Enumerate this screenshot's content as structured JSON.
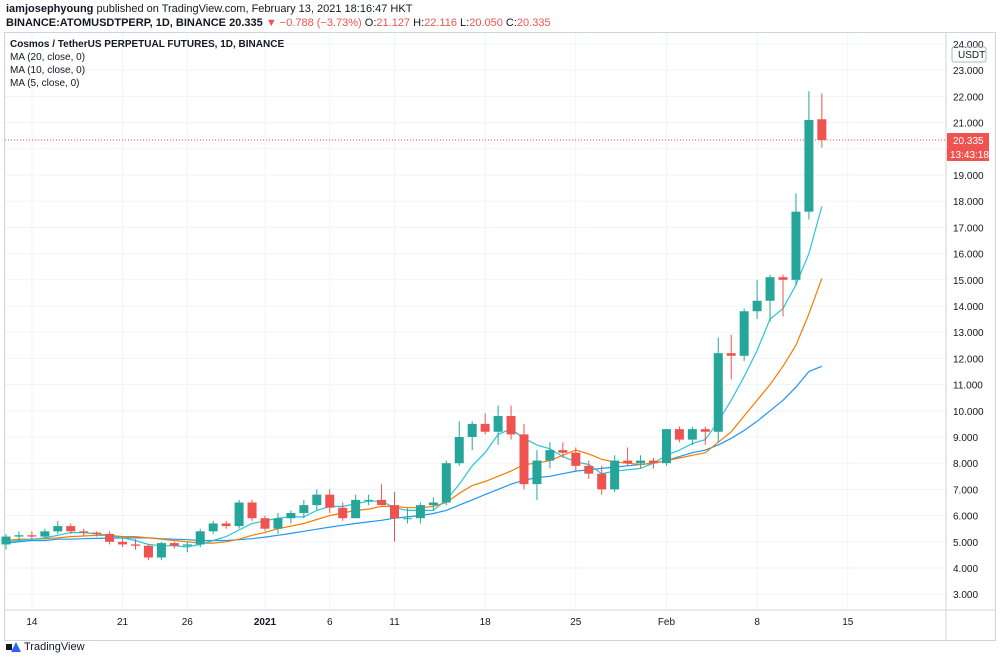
{
  "header": {
    "publisher": "iamjosephyoung",
    "published_text": "published on TradingView.com, February 13, 2021 18:16:47 HKT",
    "symbol": "BINANCE:ATOMUSDTPERP, 1D, BINANCE",
    "price": "20.335",
    "change_text": "−0.788 (−3.73%)",
    "open_label": "O:",
    "open": "21.127",
    "high_label": "H:",
    "high": "22.116",
    "low_label": "L:",
    "low": "20.050",
    "close_label": "C:",
    "close": "20.335"
  },
  "legend": {
    "title": "Cosmos / TetherUS PERPETUAL FUTURES, 1D, BINANCE",
    "ma1": "MA (20, close, 0)",
    "ma2": "MA (10, close, 0)",
    "ma3": "MA (5, close, 0)"
  },
  "axis": {
    "currency": "USDT",
    "price_tag": "20.335",
    "countdown": "13:43:18"
  },
  "footer": {
    "brand": "TradingView"
  },
  "colors": {
    "up": "#26a69a",
    "down": "#ef5350",
    "ma20": "#2196f3",
    "ma10": "#f57c00",
    "ma5": "#26c6da"
  },
  "chart_data": {
    "type": "candlestick",
    "title": "Cosmos / TetherUS PERPETUAL FUTURES, 1D, BINANCE",
    "ylim": [
      2.5,
      24.0
    ],
    "y_ticks": [
      3.0,
      4.0,
      5.0,
      6.0,
      7.0,
      8.0,
      9.0,
      10.0,
      11.0,
      12.0,
      13.0,
      14.0,
      15.0,
      16.0,
      17.0,
      18.0,
      19.0,
      20.0,
      21.0,
      22.0,
      23.0,
      24.0
    ],
    "x_ticks": [
      {
        "index": 2,
        "label": "14"
      },
      {
        "index": 9,
        "label": "21"
      },
      {
        "index": 14,
        "label": "26"
      },
      {
        "index": 20,
        "label": "2021"
      },
      {
        "index": 25,
        "label": "6"
      },
      {
        "index": 30,
        "label": "11"
      },
      {
        "index": 37,
        "label": "18"
      },
      {
        "index": 44,
        "label": "25"
      },
      {
        "index": 51,
        "label": "Feb"
      },
      {
        "index": 58,
        "label": "8"
      },
      {
        "index": 65,
        "label": "15"
      }
    ],
    "candles": [
      {
        "o": 4.9,
        "h": 5.3,
        "l": 4.7,
        "c": 5.2
      },
      {
        "o": 5.2,
        "h": 5.4,
        "l": 5.0,
        "c": 5.25
      },
      {
        "o": 5.25,
        "h": 5.4,
        "l": 5.1,
        "c": 5.2
      },
      {
        "o": 5.2,
        "h": 5.5,
        "l": 5.1,
        "c": 5.4
      },
      {
        "o": 5.4,
        "h": 5.8,
        "l": 5.3,
        "c": 5.6
      },
      {
        "o": 5.6,
        "h": 5.7,
        "l": 5.3,
        "c": 5.4
      },
      {
        "o": 5.4,
        "h": 5.5,
        "l": 5.2,
        "c": 5.35
      },
      {
        "o": 5.35,
        "h": 5.4,
        "l": 5.2,
        "c": 5.3
      },
      {
        "o": 5.3,
        "h": 5.4,
        "l": 4.9,
        "c": 5.0
      },
      {
        "o": 5.0,
        "h": 5.2,
        "l": 4.8,
        "c": 4.9
      },
      {
        "o": 4.9,
        "h": 5.1,
        "l": 4.7,
        "c": 4.85
      },
      {
        "o": 4.85,
        "h": 4.9,
        "l": 4.3,
        "c": 4.4
      },
      {
        "o": 4.4,
        "h": 5.0,
        "l": 4.3,
        "c": 4.95
      },
      {
        "o": 4.95,
        "h": 5.0,
        "l": 4.75,
        "c": 4.85
      },
      {
        "o": 4.85,
        "h": 5.0,
        "l": 4.6,
        "c": 4.9
      },
      {
        "o": 4.9,
        "h": 5.5,
        "l": 4.8,
        "c": 5.4
      },
      {
        "o": 5.4,
        "h": 5.8,
        "l": 5.3,
        "c": 5.7
      },
      {
        "o": 5.7,
        "h": 5.8,
        "l": 5.5,
        "c": 5.6
      },
      {
        "o": 5.6,
        "h": 6.6,
        "l": 5.5,
        "c": 6.5
      },
      {
        "o": 6.5,
        "h": 6.6,
        "l": 5.8,
        "c": 5.9
      },
      {
        "o": 5.9,
        "h": 6.0,
        "l": 5.4,
        "c": 5.5
      },
      {
        "o": 5.5,
        "h": 6.1,
        "l": 5.3,
        "c": 5.9
      },
      {
        "o": 5.9,
        "h": 6.2,
        "l": 5.7,
        "c": 6.1
      },
      {
        "o": 6.1,
        "h": 6.6,
        "l": 5.9,
        "c": 6.4
      },
      {
        "o": 6.4,
        "h": 7.0,
        "l": 6.2,
        "c": 6.8
      },
      {
        "o": 6.8,
        "h": 7.0,
        "l": 6.1,
        "c": 6.3
      },
      {
        "o": 6.3,
        "h": 6.5,
        "l": 5.8,
        "c": 5.9
      },
      {
        "o": 5.9,
        "h": 6.8,
        "l": 5.9,
        "c": 6.6
      },
      {
        "o": 6.6,
        "h": 6.8,
        "l": 6.4,
        "c": 6.6
      },
      {
        "o": 6.6,
        "h": 7.2,
        "l": 6.4,
        "c": 6.4
      },
      {
        "o": 6.4,
        "h": 6.9,
        "l": 5.0,
        "c": 5.9
      },
      {
        "o": 5.9,
        "h": 6.3,
        "l": 5.7,
        "c": 5.9
      },
      {
        "o": 5.9,
        "h": 6.5,
        "l": 5.7,
        "c": 6.4
      },
      {
        "o": 6.4,
        "h": 6.7,
        "l": 6.2,
        "c": 6.5
      },
      {
        "o": 6.5,
        "h": 8.1,
        "l": 6.4,
        "c": 8.0
      },
      {
        "o": 8.0,
        "h": 9.6,
        "l": 7.9,
        "c": 9.0
      },
      {
        "o": 9.0,
        "h": 9.6,
        "l": 8.5,
        "c": 9.5
      },
      {
        "o": 9.5,
        "h": 9.9,
        "l": 9.1,
        "c": 9.2
      },
      {
        "o": 9.2,
        "h": 10.2,
        "l": 8.7,
        "c": 9.8
      },
      {
        "o": 9.8,
        "h": 10.2,
        "l": 8.9,
        "c": 9.1
      },
      {
        "o": 9.1,
        "h": 9.5,
        "l": 7.0,
        "c": 7.2
      },
      {
        "o": 7.2,
        "h": 8.5,
        "l": 6.6,
        "c": 8.1
      },
      {
        "o": 8.1,
        "h": 8.8,
        "l": 7.8,
        "c": 8.5
      },
      {
        "o": 8.5,
        "h": 8.8,
        "l": 8.2,
        "c": 8.4
      },
      {
        "o": 8.4,
        "h": 8.6,
        "l": 7.7,
        "c": 7.9
      },
      {
        "o": 7.9,
        "h": 8.1,
        "l": 7.4,
        "c": 7.6
      },
      {
        "o": 7.6,
        "h": 7.9,
        "l": 6.8,
        "c": 7.0
      },
      {
        "o": 7.0,
        "h": 8.3,
        "l": 6.9,
        "c": 8.1
      },
      {
        "o": 8.1,
        "h": 8.6,
        "l": 7.9,
        "c": 8.0
      },
      {
        "o": 8.0,
        "h": 8.3,
        "l": 7.8,
        "c": 8.1
      },
      {
        "o": 8.1,
        "h": 8.2,
        "l": 7.8,
        "c": 8.0
      },
      {
        "o": 8.0,
        "h": 9.3,
        "l": 7.9,
        "c": 9.3
      },
      {
        "o": 9.3,
        "h": 9.4,
        "l": 8.8,
        "c": 8.9
      },
      {
        "o": 8.9,
        "h": 9.4,
        "l": 8.7,
        "c": 9.3
      },
      {
        "o": 9.3,
        "h": 9.4,
        "l": 8.7,
        "c": 9.2
      },
      {
        "o": 9.2,
        "h": 12.8,
        "l": 8.8,
        "c": 12.2
      },
      {
        "o": 12.2,
        "h": 12.9,
        "l": 11.2,
        "c": 12.1
      },
      {
        "o": 12.1,
        "h": 13.9,
        "l": 11.9,
        "c": 13.8
      },
      {
        "o": 13.8,
        "h": 15.0,
        "l": 13.5,
        "c": 14.2
      },
      {
        "o": 14.2,
        "h": 15.2,
        "l": 13.4,
        "c": 15.1
      },
      {
        "o": 15.1,
        "h": 15.2,
        "l": 13.6,
        "c": 15.0
      },
      {
        "o": 15.0,
        "h": 18.3,
        "l": 14.8,
        "c": 17.6
      },
      {
        "o": 17.6,
        "h": 22.2,
        "l": 17.3,
        "c": 21.1
      },
      {
        "o": 21.127,
        "h": 22.116,
        "l": 20.05,
        "c": 20.335
      }
    ],
    "ma5": [
      5.0,
      5.05,
      5.1,
      5.15,
      5.25,
      5.35,
      5.35,
      5.3,
      5.25,
      5.15,
      5.05,
      4.9,
      4.85,
      4.85,
      4.8,
      4.9,
      5.05,
      5.2,
      5.45,
      5.7,
      5.8,
      5.9,
      5.95,
      5.95,
      6.2,
      6.35,
      6.35,
      6.45,
      6.55,
      6.55,
      6.3,
      6.2,
      6.2,
      6.2,
      6.6,
      7.2,
      7.9,
      8.4,
      9.1,
      9.3,
      8.95,
      8.7,
      8.55,
      8.25,
      8.05,
      7.95,
      7.6,
      7.7,
      7.75,
      7.8,
      8.0,
      8.3,
      8.5,
      8.75,
      8.9,
      9.6,
      10.4,
      11.3,
      12.3,
      13.5,
      13.9,
      14.8,
      16.0,
      17.8
    ],
    "ma10": [
      5.05,
      5.1,
      5.1,
      5.12,
      5.15,
      5.2,
      5.22,
      5.25,
      5.25,
      5.2,
      5.2,
      5.15,
      5.1,
      5.05,
      5.0,
      4.95,
      4.95,
      5.0,
      5.1,
      5.25,
      5.35,
      5.5,
      5.6,
      5.7,
      5.85,
      6.0,
      6.1,
      6.2,
      6.25,
      6.35,
      6.35,
      6.3,
      6.3,
      6.35,
      6.5,
      6.85,
      7.15,
      7.3,
      7.5,
      7.7,
      7.95,
      8.0,
      8.1,
      8.3,
      8.5,
      8.35,
      8.15,
      8.05,
      8.0,
      7.95,
      8.0,
      8.1,
      8.2,
      8.3,
      8.4,
      8.8,
      9.2,
      9.8,
      10.4,
      11.0,
      11.7,
      12.5,
      13.7,
      15.05
    ],
    "ma20": [
      4.95,
      5.0,
      5.05,
      5.05,
      5.1,
      5.1,
      5.12,
      5.13,
      5.14,
      5.15,
      5.15,
      5.15,
      5.12,
      5.1,
      5.08,
      5.05,
      5.05,
      5.05,
      5.08,
      5.12,
      5.18,
      5.25,
      5.32,
      5.4,
      5.48,
      5.56,
      5.63,
      5.7,
      5.76,
      5.82,
      5.9,
      5.95,
      6.0,
      6.08,
      6.2,
      6.4,
      6.6,
      6.8,
      7.0,
      7.2,
      7.35,
      7.45,
      7.5,
      7.6,
      7.7,
      7.75,
      7.8,
      7.85,
      7.9,
      7.95,
      8.0,
      8.1,
      8.25,
      8.4,
      8.5,
      8.7,
      8.95,
      9.25,
      9.6,
      10.0,
      10.4,
      10.9,
      11.5,
      11.7
    ]
  }
}
